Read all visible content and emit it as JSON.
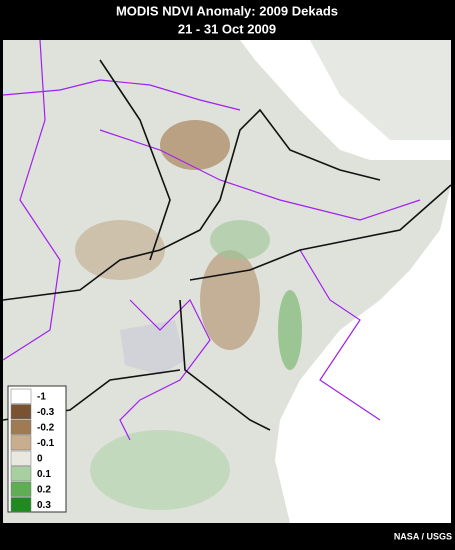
{
  "header": {
    "title": "MODIS NDVI Anomaly: 2009 Dekads",
    "subtitle": "21 - 31 Oct 2009"
  },
  "legend": {
    "items": [
      {
        "label": -1,
        "color": "#ffffff"
      },
      {
        "label": -0.3,
        "color": "#7a5230"
      },
      {
        "label": -0.2,
        "color": "#a07a50"
      },
      {
        "label": -0.1,
        "color": "#c9ae8e"
      },
      {
        "label": 0,
        "color": "#e8e8e0"
      },
      {
        "label": 0.1,
        "color": "#a8cfa0"
      },
      {
        "label": 0.2,
        "color": "#5fae55"
      },
      {
        "label": 0.3,
        "color": "#1f8a1f"
      }
    ]
  },
  "credit": "NASA / USGS"
}
